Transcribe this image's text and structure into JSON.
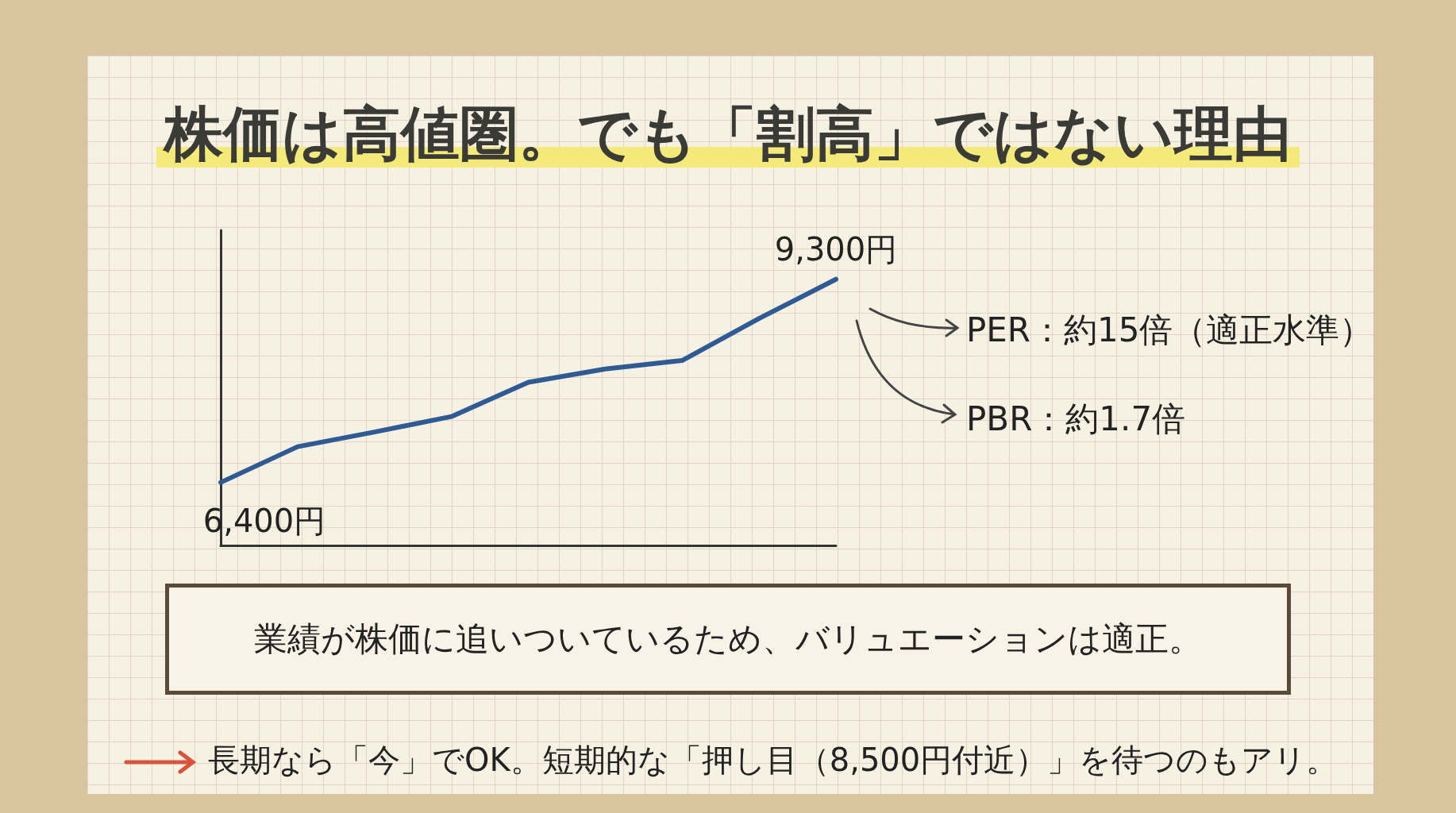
{
  "chart_data": {
    "type": "line",
    "title": "株価は高値圏。でも「割高」ではない理由",
    "categories": [
      null,
      null,
      null,
      null,
      null,
      null,
      null,
      null,
      null
    ],
    "series": [
      {
        "color": "#2f5a94",
        "values": [
          6400,
          6910,
          7120,
          7340,
          7830,
          8020,
          8140,
          8740,
          9300
        ],
        "value_labels": [
          "6,400円",
          null,
          null,
          null,
          null,
          null,
          null,
          null,
          "9,300円"
        ]
      }
    ],
    "ylim": [
      5500,
      10000
    ],
    "tick_labels": false,
    "grid": false,
    "marker": "none",
    "line_style": "solid",
    "annotations": [
      "PER：約15倍（適正水準）",
      "PBR：約1.7倍",
      "業績が株価に追いついているため、バリュエーションは適正。",
      "長期なら「今」でOK。短期的な「押し目（8,500円付近）」を待つのもアリ。"
    ]
  }
}
